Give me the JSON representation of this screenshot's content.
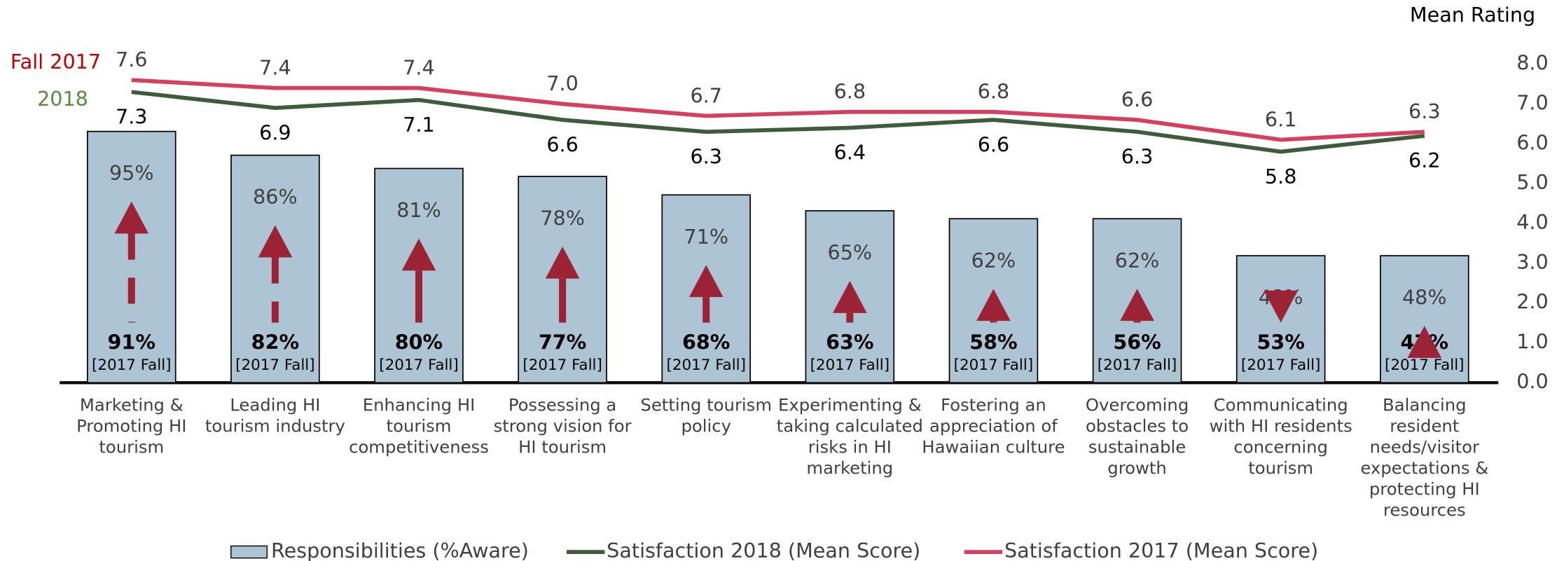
{
  "chart_data": {
    "type": "bar",
    "categories": [
      "Marketing & Promoting HI tourism",
      "Leading HI tourism industry",
      "Enhancing HI tourism competitiveness",
      "Possessing a strong vision for HI tourism",
      "Setting tourism policy",
      "Experimenting & taking calculated risks in HI marketing",
      "Fostering an appreciation of Hawaiian culture",
      "Overcoming obstacles to sustainable growth",
      "Communicating with HI residents concerning tourism",
      "Balancing resident needs/visitor expectations & protecting HI resources"
    ],
    "series": [
      {
        "name": "Responsibilities (%Aware)",
        "color": "#adc4d4",
        "values": [
          95,
          86,
          81,
          78,
          71,
          65,
          62,
          62,
          48,
          48
        ],
        "value_labels": [
          "95%",
          "86%",
          "81%",
          "78%",
          "71%",
          "65%",
          "62%",
          "62%",
          "48%",
          "48%"
        ]
      },
      {
        "name": "Satisfaction 2018 (Mean Score)",
        "color": "#3e5b3c",
        "axis": "y2",
        "values": [
          7.3,
          6.9,
          7.1,
          6.6,
          6.3,
          6.4,
          6.6,
          6.3,
          5.8,
          6.2
        ],
        "value_labels": [
          "7.3",
          "6.9",
          "7.1",
          "6.6",
          "6.3",
          "6.4",
          "6.6",
          "6.3",
          "5.8",
          "6.2"
        ]
      },
      {
        "name": "Satisfaction 2017 (Mean Score)",
        "color": "#d6405e",
        "axis": "y2",
        "values": [
          7.6,
          7.4,
          7.4,
          7.0,
          6.7,
          6.8,
          6.8,
          6.6,
          6.1,
          6.3
        ],
        "value_labels": [
          "7.6",
          "7.4",
          "7.4",
          "7.0",
          "6.7",
          "6.8",
          "6.8",
          "6.6",
          "6.1",
          "6.3"
        ]
      }
    ],
    "comparison": {
      "name": "[2017 Fall]",
      "values": [
        91,
        82,
        80,
        77,
        68,
        63,
        58,
        56,
        53,
        47
      ],
      "value_labels": [
        "91%",
        "82%",
        "80%",
        "77%",
        "68%",
        "63%",
        "58%",
        "56%",
        "53%",
        "47%"
      ],
      "color": "#9b2335"
    },
    "line_labels": [
      {
        "text": "2018",
        "color": "#5a8a3a"
      },
      {
        "text": "Fall 2017",
        "color": "#c00000"
      }
    ],
    "y2_label": "Mean Rating",
    "ylim": [
      0,
      100
    ],
    "y2lim": [
      0,
      8
    ],
    "y2ticks": [
      {
        "value": 0,
        "label": "0.0"
      },
      {
        "value": 1,
        "label": "1.0"
      },
      {
        "value": 2,
        "label": "2.0"
      },
      {
        "value": 3,
        "label": "3.0"
      },
      {
        "value": 4,
        "label": "4.0"
      },
      {
        "value": 5,
        "label": "5.0"
      },
      {
        "value": 6,
        "label": "6.0"
      },
      {
        "value": 7,
        "label": "7.0"
      },
      {
        "value": 8,
        "label": "8.0"
      }
    ],
    "legend": "bottom"
  }
}
